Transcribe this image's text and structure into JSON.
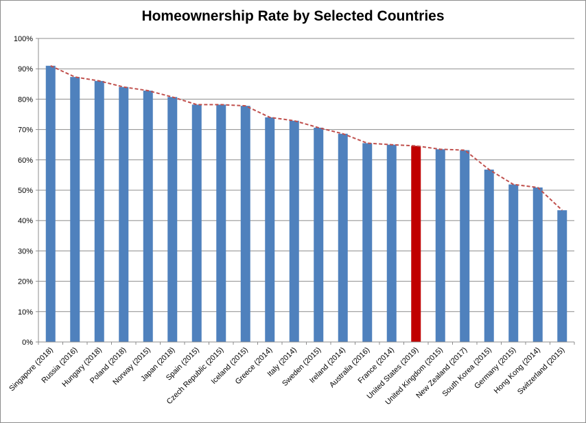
{
  "chart_data": {
    "type": "bar",
    "title": "Homeownership Rate by Selected Countries",
    "xlabel": "",
    "ylabel": "",
    "ylim": [
      0,
      100
    ],
    "yticks": [
      "0%",
      "10%",
      "20%",
      "30%",
      "40%",
      "50%",
      "60%",
      "70%",
      "80%",
      "90%",
      "100%"
    ],
    "grid": true,
    "legend": "none",
    "bar_color": "#4f81bd",
    "highlight_color": "#c00000",
    "trend_line_color": "#c0504d",
    "highlight_category": "United States (2019)",
    "categories": [
      "Singapore (2018)",
      "Russia (2016)",
      "Hungary (2018)",
      "Poland (2018)",
      "Norway (2015)",
      "Japan (2018)",
      "Spain (2015)",
      "Czech Republic (2015)",
      "Iceland (2015)",
      "Greece (2014)",
      "Italy (2014)",
      "Sweden (2015)",
      "Ireland (2014)",
      "Australia (2016)",
      "France (2014)",
      "United States (2019)",
      "United Kingdom (2015)",
      "New Zealand (2017)",
      "South Korea (2015)",
      "Germany (2015)",
      "Hong Kong (2014)",
      "Switzerland (2015)"
    ],
    "values": [
      91.0,
      87.3,
      86.0,
      84.0,
      82.8,
      80.7,
      78.2,
      78.2,
      77.8,
      74.0,
      72.9,
      70.6,
      68.6,
      65.5,
      65.0,
      64.6,
      63.5,
      63.2,
      56.8,
      51.9,
      50.9,
      43.4
    ]
  }
}
